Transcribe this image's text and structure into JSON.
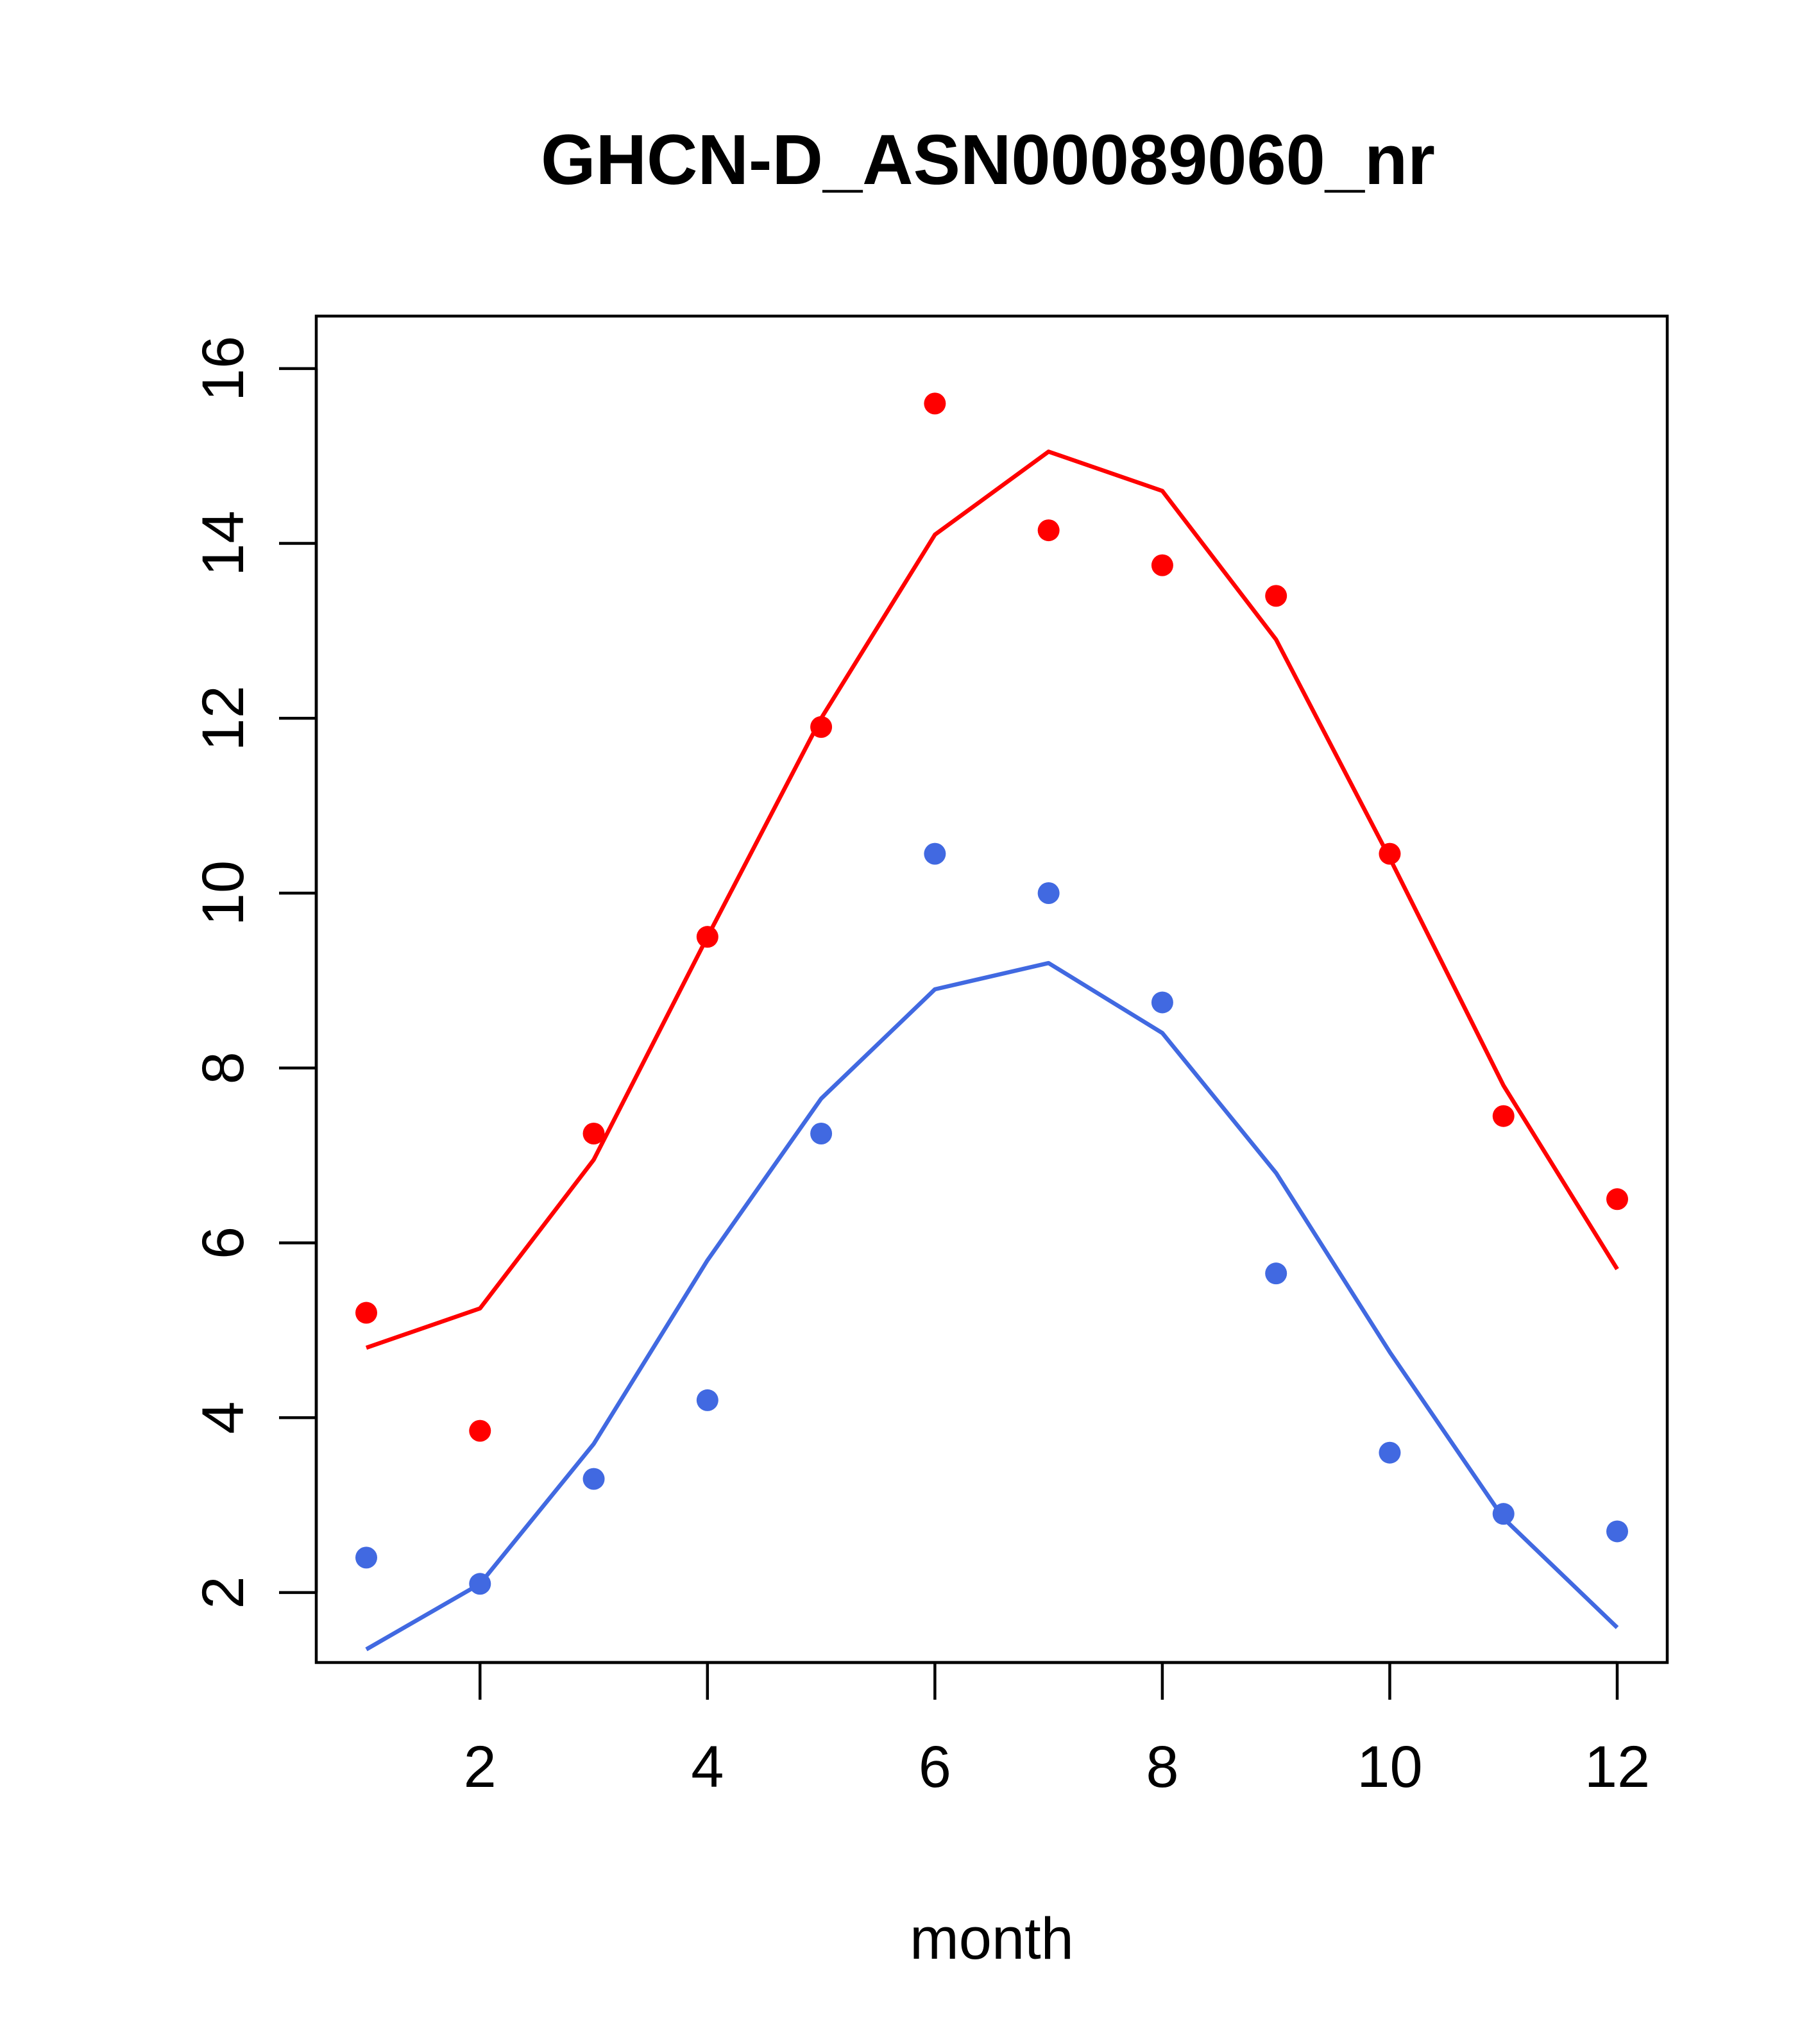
{
  "chart_data": {
    "type": "line",
    "title": "GHCN-D_ASN00089060_nr",
    "xlabel": "month",
    "ylabel": "",
    "xlim": [
      0.56,
      12.44
    ],
    "ylim": [
      1.2,
      16.6
    ],
    "x_ticks": [
      2,
      4,
      6,
      8,
      10,
      12
    ],
    "y_ticks": [
      2,
      4,
      6,
      8,
      10,
      12,
      14,
      16
    ],
    "grid": false,
    "x": [
      1,
      2,
      3,
      4,
      5,
      6,
      7,
      8,
      9,
      10,
      11,
      12
    ],
    "series": [
      {
        "kind": "line",
        "color": "#ff0000",
        "values": [
          4.8,
          5.25,
          6.95,
          9.5,
          12.0,
          14.1,
          15.05,
          14.6,
          12.9,
          10.4,
          7.8,
          5.7
        ]
      },
      {
        "kind": "points",
        "color": "#ff0000",
        "values": [
          5.2,
          3.85,
          7.25,
          9.5,
          11.9,
          15.6,
          14.15,
          13.75,
          13.4,
          10.45,
          7.45,
          6.5
        ]
      },
      {
        "kind": "line",
        "color": "#4169e1",
        "values": [
          1.35,
          2.1,
          3.7,
          5.8,
          7.65,
          8.9,
          9.2,
          8.4,
          6.8,
          4.75,
          2.85,
          1.6
        ]
      },
      {
        "kind": "points",
        "color": "#4169e1",
        "values": [
          2.4,
          2.1,
          3.3,
          4.2,
          7.25,
          10.45,
          10.0,
          8.75,
          5.65,
          3.6,
          2.9,
          2.7
        ]
      }
    ]
  }
}
